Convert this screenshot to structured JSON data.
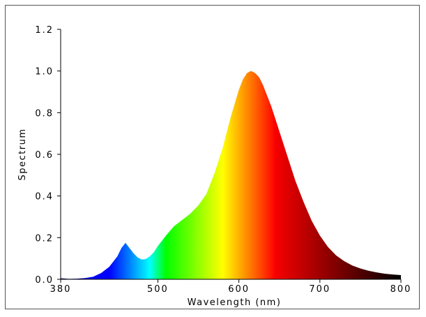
{
  "chart_data": {
    "type": "area",
    "xlabel": "Wavelength (nm)",
    "ylabel": "Spectrum",
    "xlim": [
      380,
      800
    ],
    "ylim": [
      0,
      1.2
    ],
    "x_ticks": [
      "380",
      "500",
      "600",
      "700",
      "800"
    ],
    "y_ticks": [
      "0.0",
      "0.2",
      "0.4",
      "0.6",
      "0.8",
      "1.0",
      "1.2"
    ],
    "fill": "visible-spectrum color by wavelength",
    "grid": false,
    "series": [
      {
        "x": [
          380,
          390,
          400,
          410,
          420,
          430,
          440,
          450,
          455,
          460,
          465,
          470,
          475,
          480,
          485,
          490,
          495,
          500,
          510,
          520,
          530,
          540,
          550,
          560,
          570,
          580,
          590,
          600,
          605,
          610,
          615,
          620,
          625,
          630,
          640,
          650,
          660,
          670,
          680,
          690,
          700,
          710,
          720,
          730,
          740,
          750,
          760,
          770,
          780,
          790,
          800
        ],
        "values": [
          0.005,
          0.002,
          0.003,
          0.006,
          0.012,
          0.03,
          0.06,
          0.11,
          0.15,
          0.175,
          0.15,
          0.125,
          0.105,
          0.095,
          0.097,
          0.11,
          0.13,
          0.16,
          0.21,
          0.255,
          0.285,
          0.315,
          0.355,
          0.41,
          0.51,
          0.63,
          0.78,
          0.91,
          0.96,
          0.99,
          1.0,
          0.99,
          0.97,
          0.93,
          0.83,
          0.71,
          0.59,
          0.47,
          0.37,
          0.28,
          0.21,
          0.155,
          0.115,
          0.087,
          0.066,
          0.052,
          0.041,
          0.033,
          0.027,
          0.023,
          0.02
        ]
      }
    ]
  }
}
